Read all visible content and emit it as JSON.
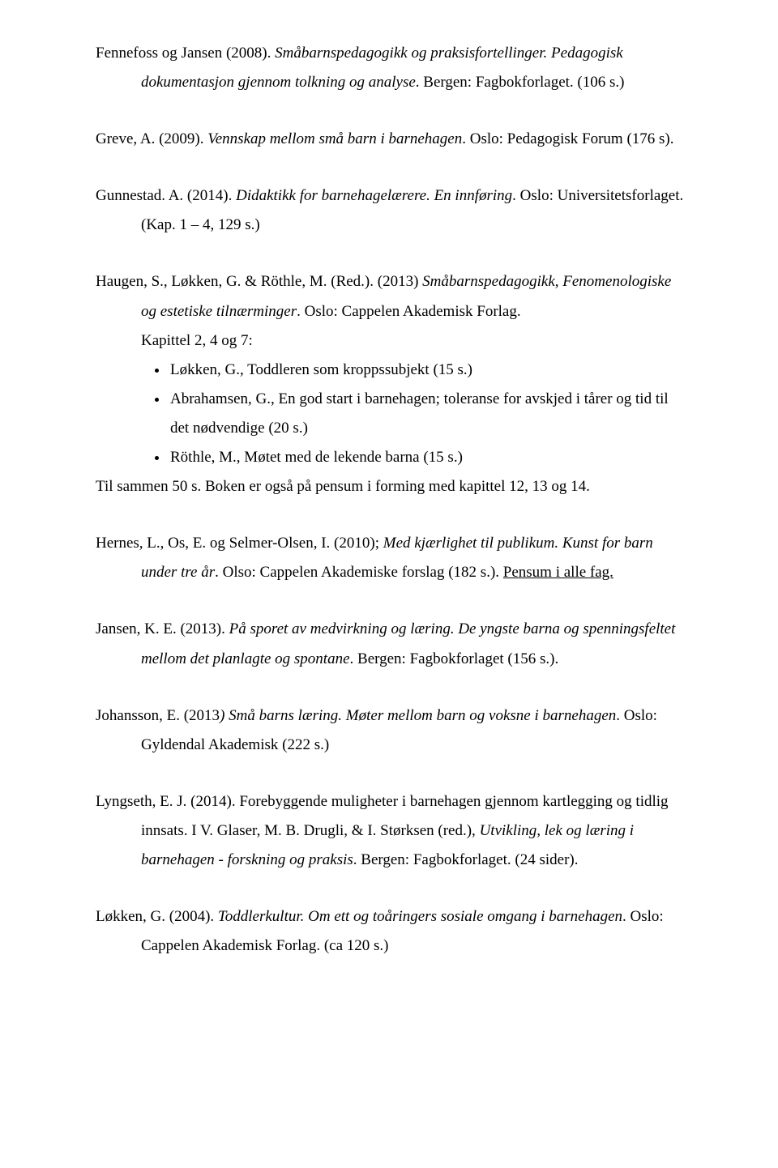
{
  "p1": {
    "a": "Fennefoss og Jansen (2008). ",
    "b": "Småbarnspedagogikk og praksisfortellinger. Pedagogisk dokumentasjon gjennom tolkning og analyse",
    "c": ". Bergen: Fagbokforlaget. (106 s.)"
  },
  "p2": {
    "a": "Greve, A. (2009). ",
    "b": "Vennskap mellom små barn i barnehagen",
    "c": ". Oslo: Pedagogisk Forum (176 s)."
  },
  "p3": {
    "a": "Gunnestad. A. (2014). ",
    "b": "Didaktikk for barnehagelærere. En innføring",
    "c": ". Oslo: Universitetsforlaget. (Kap. 1 – 4, 129 s.)"
  },
  "p4": {
    "a": "Haugen, S., Løkken, G. & Röthle, M. (Red.). (2013) ",
    "b": "Småbarnspedagogikk, Fenomenologiske og estetiske tilnærminger",
    "c": ". Oslo: Cappelen Akademisk Forlag.",
    "chapter": "Kapittel 2, 4 og 7:"
  },
  "bullets": [
    "Løkken, G., Toddleren som kroppssubjekt (15 s.)",
    "Abrahamsen, G., En god start i barnehagen; toleranse for avskjed i tårer og tid til det nødvendige (20 s.)",
    "Röthle, M., Møtet med de lekende barna (15 s.)"
  ],
  "afterList": "Til sammen 50 s. Boken er også på pensum i forming med kapittel 12, 13 og 14.",
  "p5": {
    "a": "Hernes, L., Os, E. og Selmer-Olsen, I. (2010); ",
    "b": "Med kjærlighet til publikum. Kunst for barn under tre år",
    "c": ". Olso: Cappelen Akademiske forslag (182 s.). ",
    "d": "Pensum i alle fag."
  },
  "p6": {
    "a": "Jansen, K. E. (2013). ",
    "b": "På sporet av medvirkning og læring. De yngste barna og spenningsfeltet mellom det planlagte og spontane",
    "c": ". Bergen: Fagbokforlaget (156 s.)."
  },
  "p7": {
    "a": "Johansson, E. (2013",
    "b": ") Små barns læring. Møter mellom barn og voksne i barnehagen",
    "c": ". Oslo: Gyldendal Akademisk (222 s.)"
  },
  "p8": {
    "a": "Lyngseth, E. J. (2014). Forebyggende muligheter i barnehagen gjennom kartlegging og tidlig innsats. I V. Glaser, M. B. Drugli, & I. Størksen (red.), ",
    "b": "Utvikling, lek og læring i barnehagen - forskning og praksis",
    "c": ". Bergen: Fagbokforlaget. (24 sider)."
  },
  "p9": {
    "a": "Løkken, G. (2004). ",
    "b": "Toddlerkultur. Om ett og toåringers sosiale omgang i barnehagen",
    "c": ". Oslo: Cappelen Akademisk Forlag. (ca 120 s.)"
  }
}
